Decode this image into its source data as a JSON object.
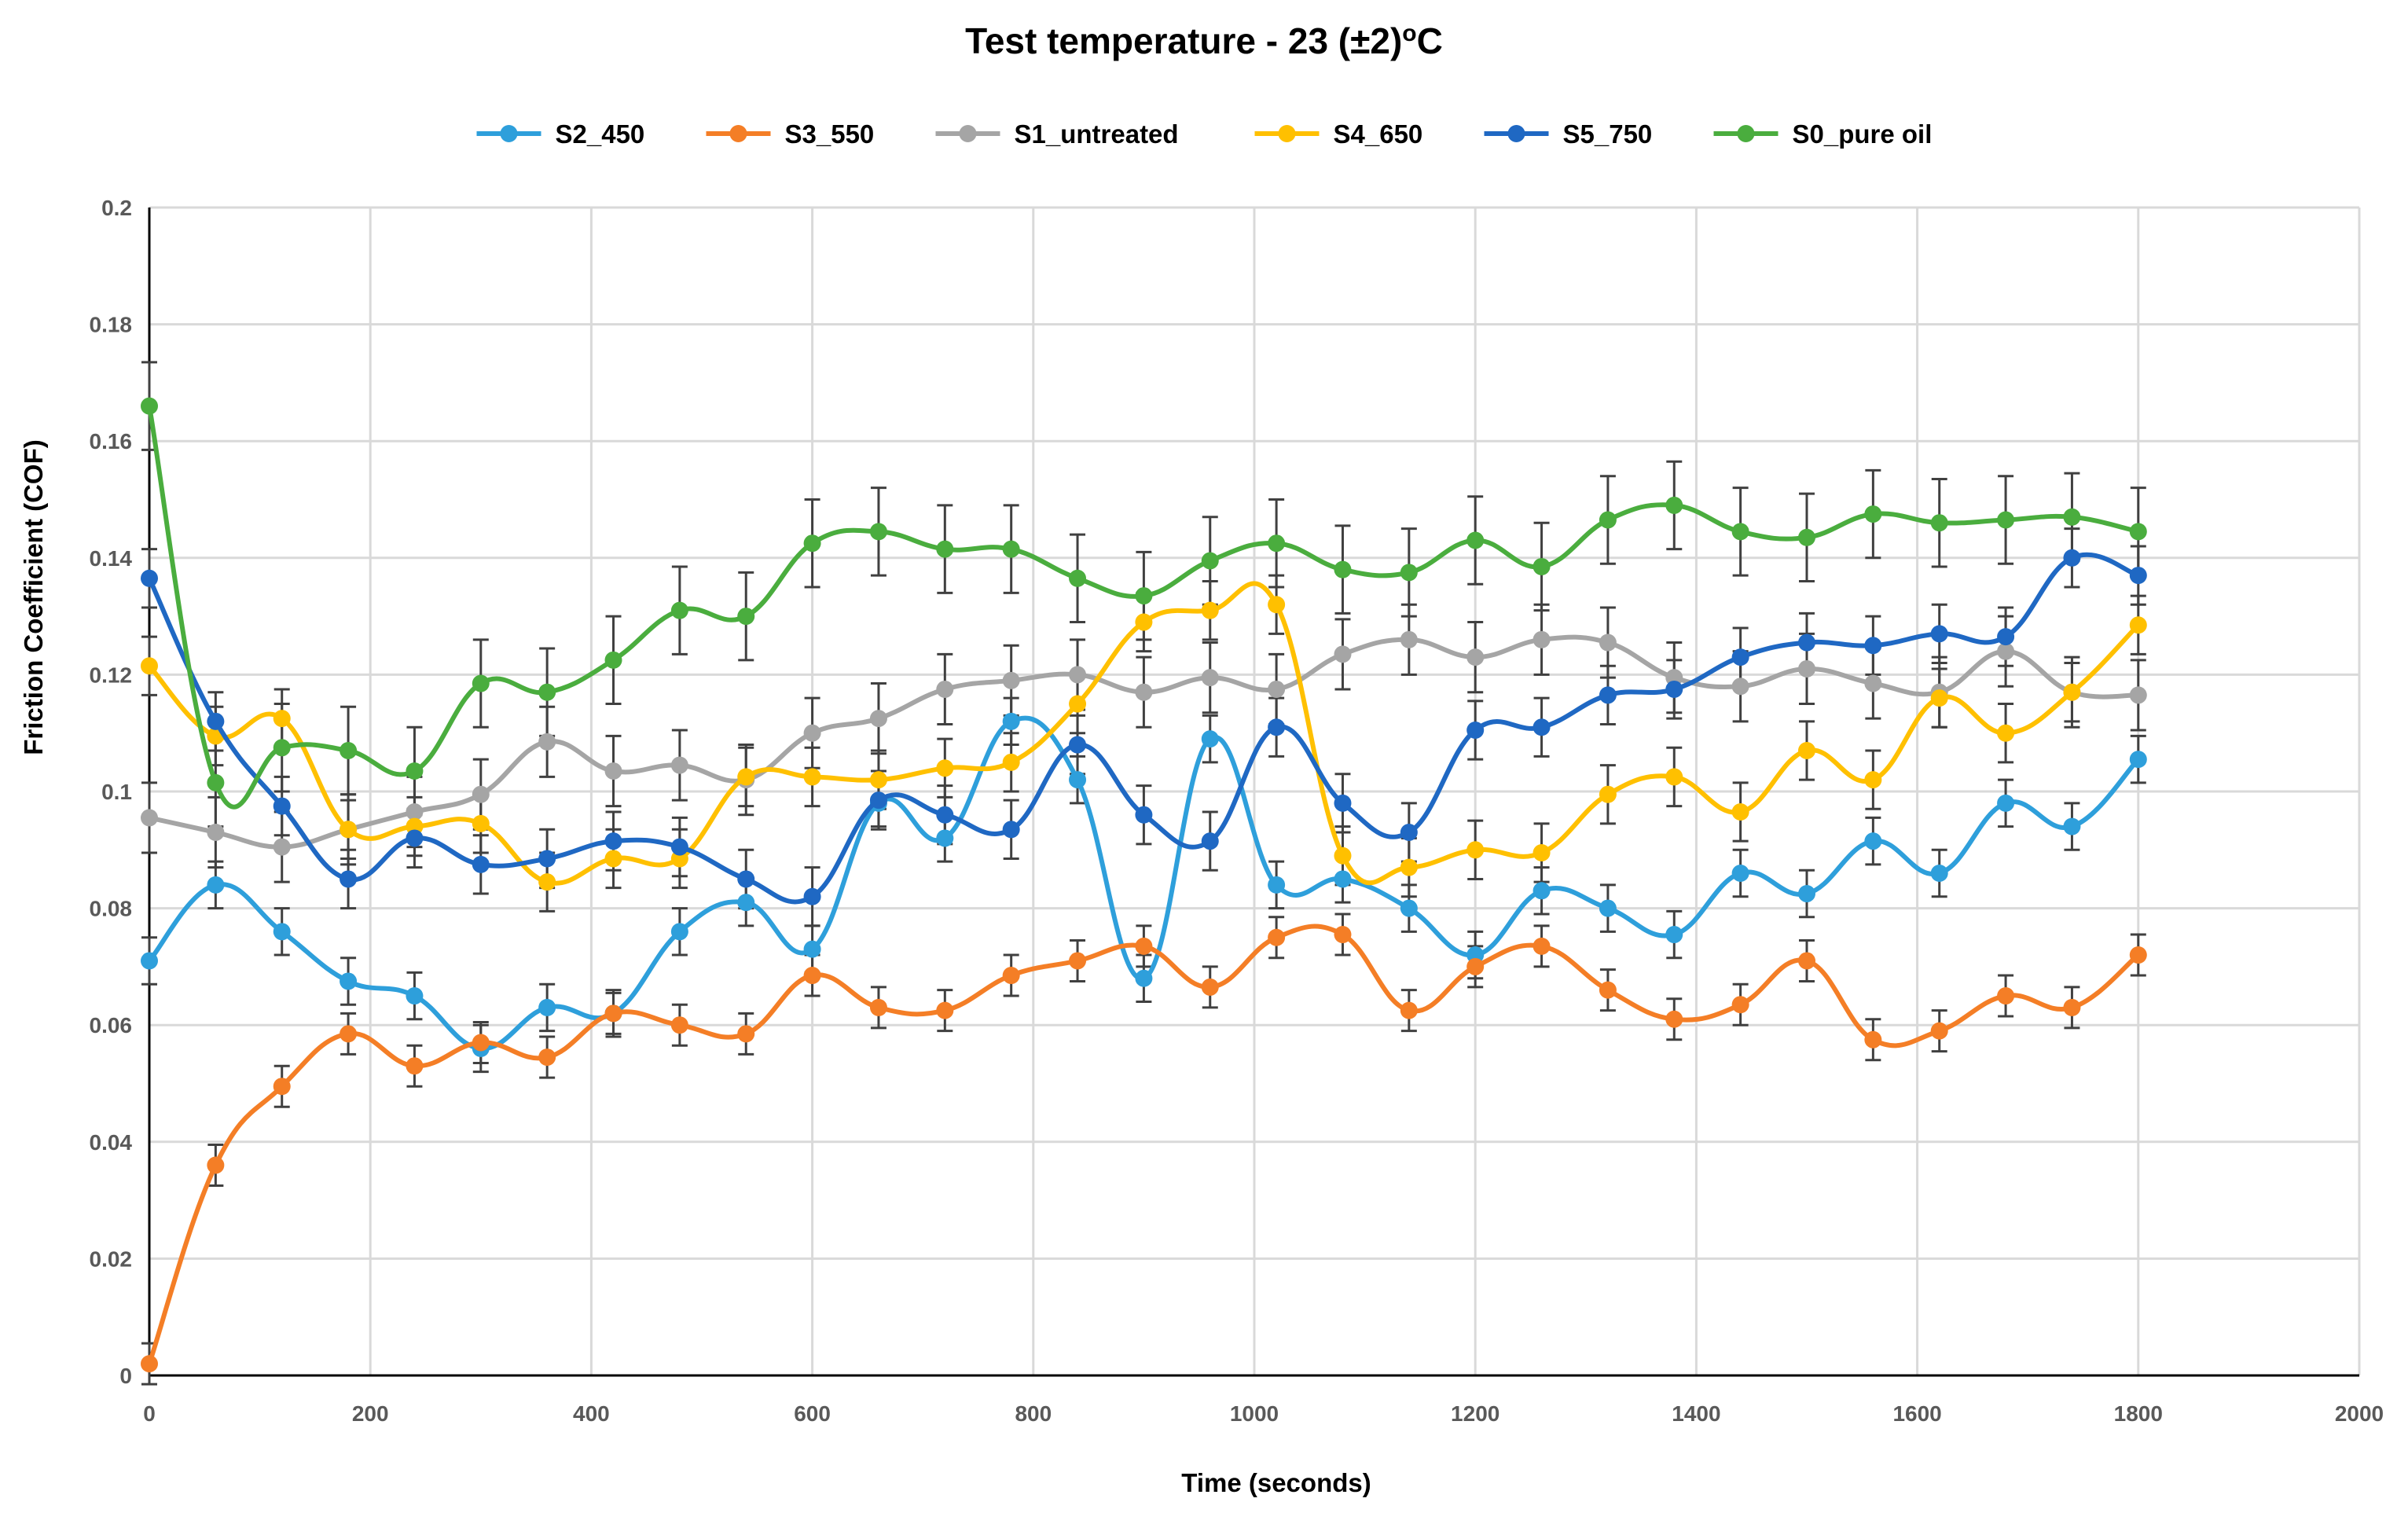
{
  "chart_data": {
    "type": "line",
    "title_main": "Test temperature - 23 (±2)",
    "title_superscript": "o",
    "title_unit": "C",
    "xlabel": "Time (seconds)",
    "ylabel": "Friction Coefficient (COF)",
    "xlim": [
      0,
      2000
    ],
    "ylim": [
      0,
      0.2
    ],
    "xticks": [
      0,
      200,
      400,
      600,
      800,
      1000,
      1200,
      1400,
      1600,
      1800,
      2000
    ],
    "yticks": [
      0,
      0.02,
      0.04,
      0.06,
      0.08,
      0.1,
      0.12,
      0.14,
      0.16,
      0.18,
      0.2
    ],
    "ytick_labels": [
      "0",
      "0.02",
      "0.04",
      "0.06",
      "0.08",
      "0.1",
      "0.12",
      "0.14",
      "0.16",
      "0.18",
      "0.2"
    ],
    "grid": true,
    "legend_position": "top-center",
    "x": [
      0,
      60,
      120,
      180,
      240,
      300,
      360,
      420,
      480,
      540,
      600,
      660,
      720,
      780,
      840,
      900,
      960,
      1020,
      1080,
      1140,
      1200,
      1260,
      1320,
      1380,
      1440,
      1500,
      1560,
      1620,
      1680,
      1740,
      1800
    ],
    "series": [
      {
        "name": "S2_450",
        "color": "#2E9FDB",
        "error": 0.004,
        "values": [
          0.071,
          0.084,
          0.076,
          0.0675,
          0.065,
          0.056,
          0.063,
          0.062,
          0.076,
          0.081,
          0.073,
          0.098,
          0.092,
          0.112,
          0.102,
          0.068,
          0.109,
          0.084,
          0.085,
          0.08,
          0.072,
          0.083,
          0.08,
          0.0755,
          0.086,
          0.0825,
          0.0915,
          0.086,
          0.098,
          0.094,
          0.1055
        ]
      },
      {
        "name": "S3_550",
        "color": "#F47E26",
        "error": 0.0035,
        "values": [
          0.002,
          0.036,
          0.0495,
          0.0585,
          0.053,
          0.057,
          0.0545,
          0.062,
          0.06,
          0.0585,
          0.0685,
          0.063,
          0.0625,
          0.0685,
          0.071,
          0.0735,
          0.0665,
          0.075,
          0.0755,
          0.0625,
          0.07,
          0.0735,
          0.066,
          0.061,
          0.0635,
          0.071,
          0.0575,
          0.059,
          0.065,
          0.063,
          0.072
        ]
      },
      {
        "name": "S1_untreated",
        "color": "#A5A5A5",
        "error": 0.006,
        "values": [
          0.0955,
          0.093,
          0.0905,
          0.0935,
          0.0965,
          0.0995,
          0.1085,
          0.1035,
          0.1045,
          0.102,
          0.11,
          0.1125,
          0.1175,
          0.119,
          0.12,
          0.117,
          0.1195,
          0.1175,
          0.1235,
          0.126,
          0.123,
          0.126,
          0.1255,
          0.1195,
          0.118,
          0.121,
          0.1185,
          0.117,
          0.124,
          0.117,
          0.1165
        ]
      },
      {
        "name": "S4_650",
        "color": "#FFC000",
        "error": 0.005,
        "values": [
          0.1215,
          0.1095,
          0.1125,
          0.0935,
          0.094,
          0.0945,
          0.0845,
          0.0885,
          0.0885,
          0.1025,
          0.1025,
          0.102,
          0.104,
          0.105,
          0.115,
          0.129,
          0.131,
          0.132,
          0.089,
          0.087,
          0.09,
          0.0895,
          0.0995,
          0.1025,
          0.0965,
          0.107,
          0.102,
          0.116,
          0.11,
          0.117,
          0.1285
        ]
      },
      {
        "name": "S5_750",
        "color": "#1F68C3",
        "error": 0.005,
        "values": [
          0.1365,
          0.112,
          0.0975,
          0.085,
          0.092,
          0.0875,
          0.0885,
          0.0915,
          0.0905,
          0.085,
          0.082,
          0.0985,
          0.096,
          0.0935,
          0.108,
          0.096,
          0.0915,
          0.111,
          0.098,
          0.093,
          0.1105,
          0.111,
          0.1165,
          0.1175,
          0.123,
          0.1255,
          0.125,
          0.127,
          0.1265,
          0.14,
          0.137
        ]
      },
      {
        "name": "S0_pure oil",
        "color": "#4AAD3E",
        "error": 0.0075,
        "values": [
          0.166,
          0.1015,
          0.1075,
          0.107,
          0.1035,
          0.1185,
          0.117,
          0.1225,
          0.131,
          0.13,
          0.1425,
          0.1445,
          0.1415,
          0.1415,
          0.1365,
          0.1335,
          0.1395,
          0.1425,
          0.138,
          0.1375,
          0.143,
          0.1385,
          0.1465,
          0.149,
          0.1445,
          0.1435,
          0.1475,
          0.146,
          0.1465,
          0.147,
          0.1445
        ]
      }
    ]
  }
}
